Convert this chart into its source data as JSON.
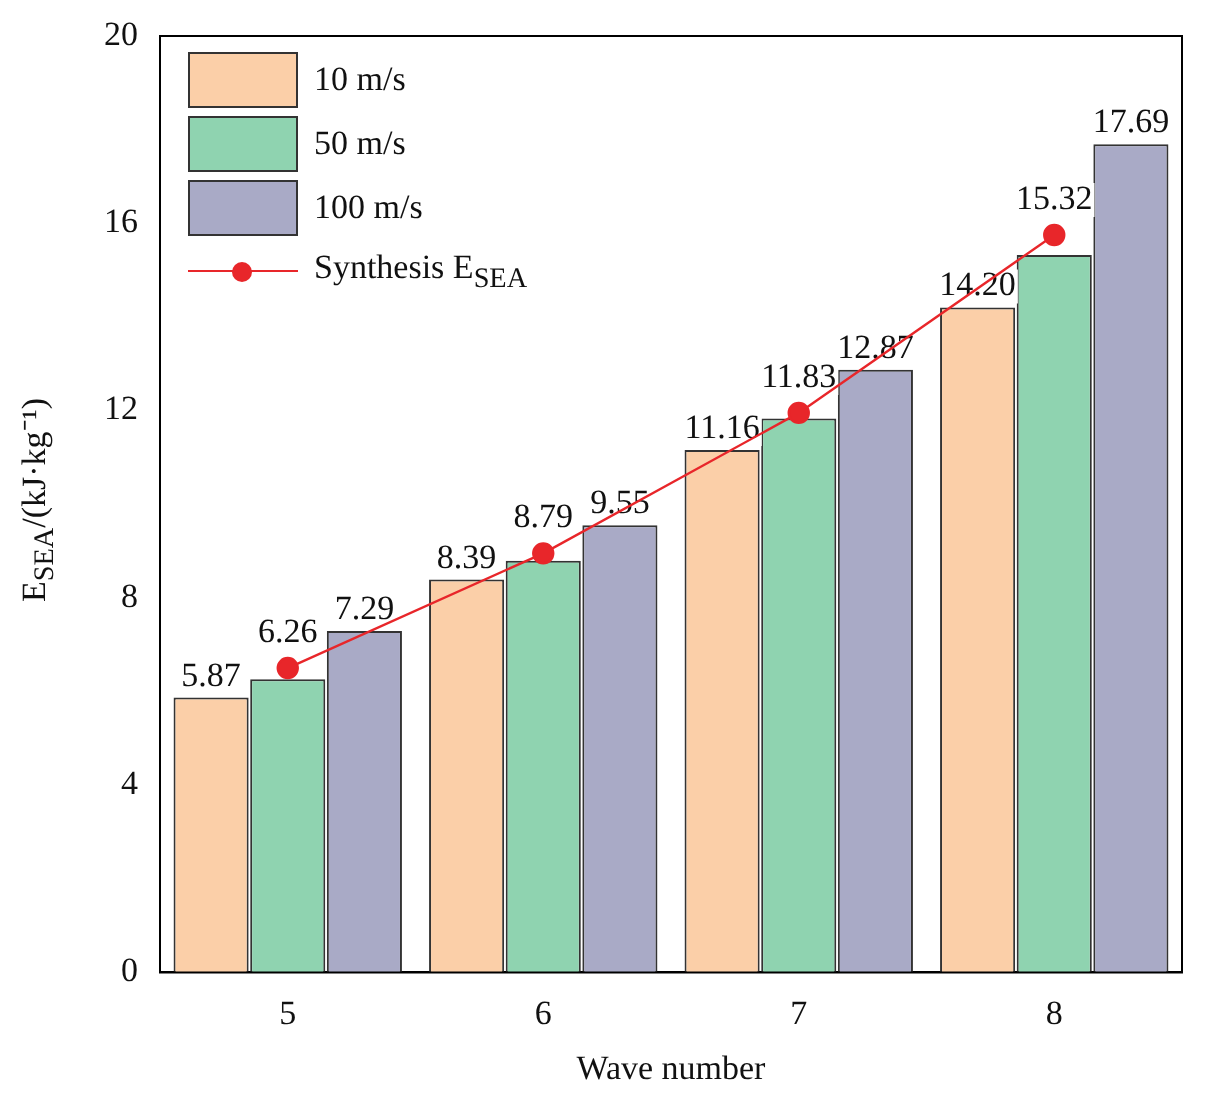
{
  "chart_data": {
    "type": "bar",
    "xlabel": "Wave number",
    "ylabel": "E$_{SEA}$/(kJ·kg⁻¹)",
    "categories": [
      "5",
      "6",
      "7",
      "8"
    ],
    "ylim": [
      0,
      20
    ],
    "yticks": [
      0,
      4,
      8,
      12,
      16,
      20
    ],
    "grid": false,
    "legend": "top left",
    "series": [
      {
        "name": "10 m/s",
        "color": "#fbcfa8",
        "values": [
          5.87,
          8.39,
          11.16,
          14.2
        ],
        "value_labels": [
          "5.87",
          "8.39",
          "11.16",
          "14.20"
        ]
      },
      {
        "name": "50 m/s",
        "color": "#8fd3b0",
        "values": [
          6.26,
          8.79,
          11.83,
          15.32
        ],
        "value_labels": [
          "6.26",
          "8.79",
          "11.83",
          "15.32"
        ]
      },
      {
        "name": "100 m/s",
        "color": "#a9aac6",
        "values": [
          7.29,
          9.55,
          12.87,
          17.69
        ],
        "value_labels": [
          "7.29",
          "9.55",
          "12.87",
          "17.69"
        ]
      },
      {
        "name": "Synthesis E$_{SEA}$",
        "type": "line",
        "color": "#e8262a",
        "marker": "circle",
        "line_style": "solid",
        "values": [
          6.5,
          8.95,
          11.95,
          15.75
        ]
      }
    ]
  }
}
